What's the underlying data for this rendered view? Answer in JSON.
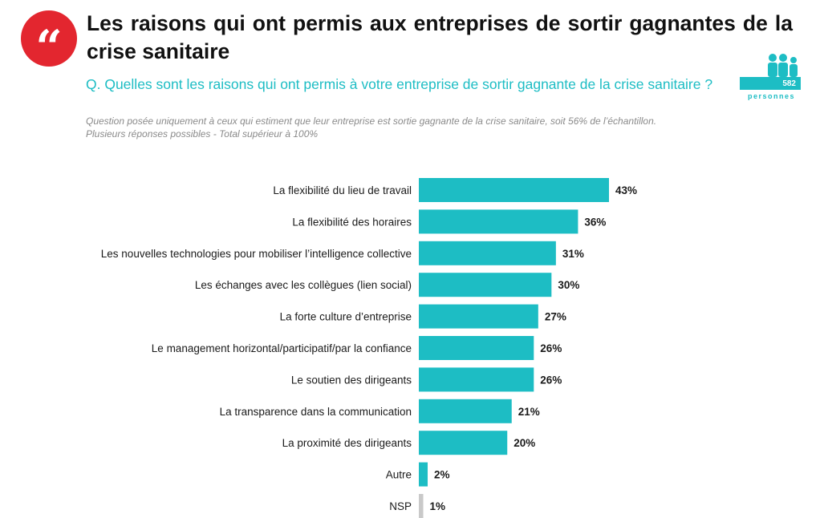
{
  "header": {
    "quote_glyph": "“",
    "title": "Les raisons qui ont permis aux entreprises de sortir gagnantes de la crise sanitaire",
    "question": "Q. Quelles sont les raisons qui ont permis à votre entreprise de sortir gagnante de la crise sanitaire ?",
    "note_line1": "Question posée uniquement à ceux qui estiment que leur entreprise est sortie gagnante de la crise sanitaire, soit 56% de l’échantillon.",
    "note_line2": "Plusieurs réponses possibles - Total supérieur à 100%"
  },
  "sample": {
    "count": "582",
    "label": "personnes",
    "icon": "people-icon"
  },
  "colors": {
    "accent": "#1dbdc4",
    "badge": "#e3262f",
    "nsp_bar": "#c9c9c9"
  },
  "chart_data": {
    "type": "bar",
    "orientation": "horizontal",
    "categories": [
      "La flexibilité du lieu de travail",
      "La flexibilité des horaires",
      "Les nouvelles technologies pour mobiliser l’intelligence collective",
      "Les échanges avec les collègues (lien social)",
      "La forte culture d’entreprise",
      "Le management horizontal/participatif/par la confiance",
      "Le soutien des dirigeants",
      "La transparence dans la communication",
      "La proximité des dirigeants",
      "Autre",
      "NSP"
    ],
    "values": [
      43,
      36,
      31,
      30,
      27,
      26,
      26,
      21,
      20,
      2,
      1
    ],
    "value_labels": [
      "43%",
      "36%",
      "31%",
      "30%",
      "27%",
      "26%",
      "26%",
      "21%",
      "20%",
      "2%",
      "1%"
    ],
    "unit": "%",
    "grid": false,
    "legend": "none"
  }
}
